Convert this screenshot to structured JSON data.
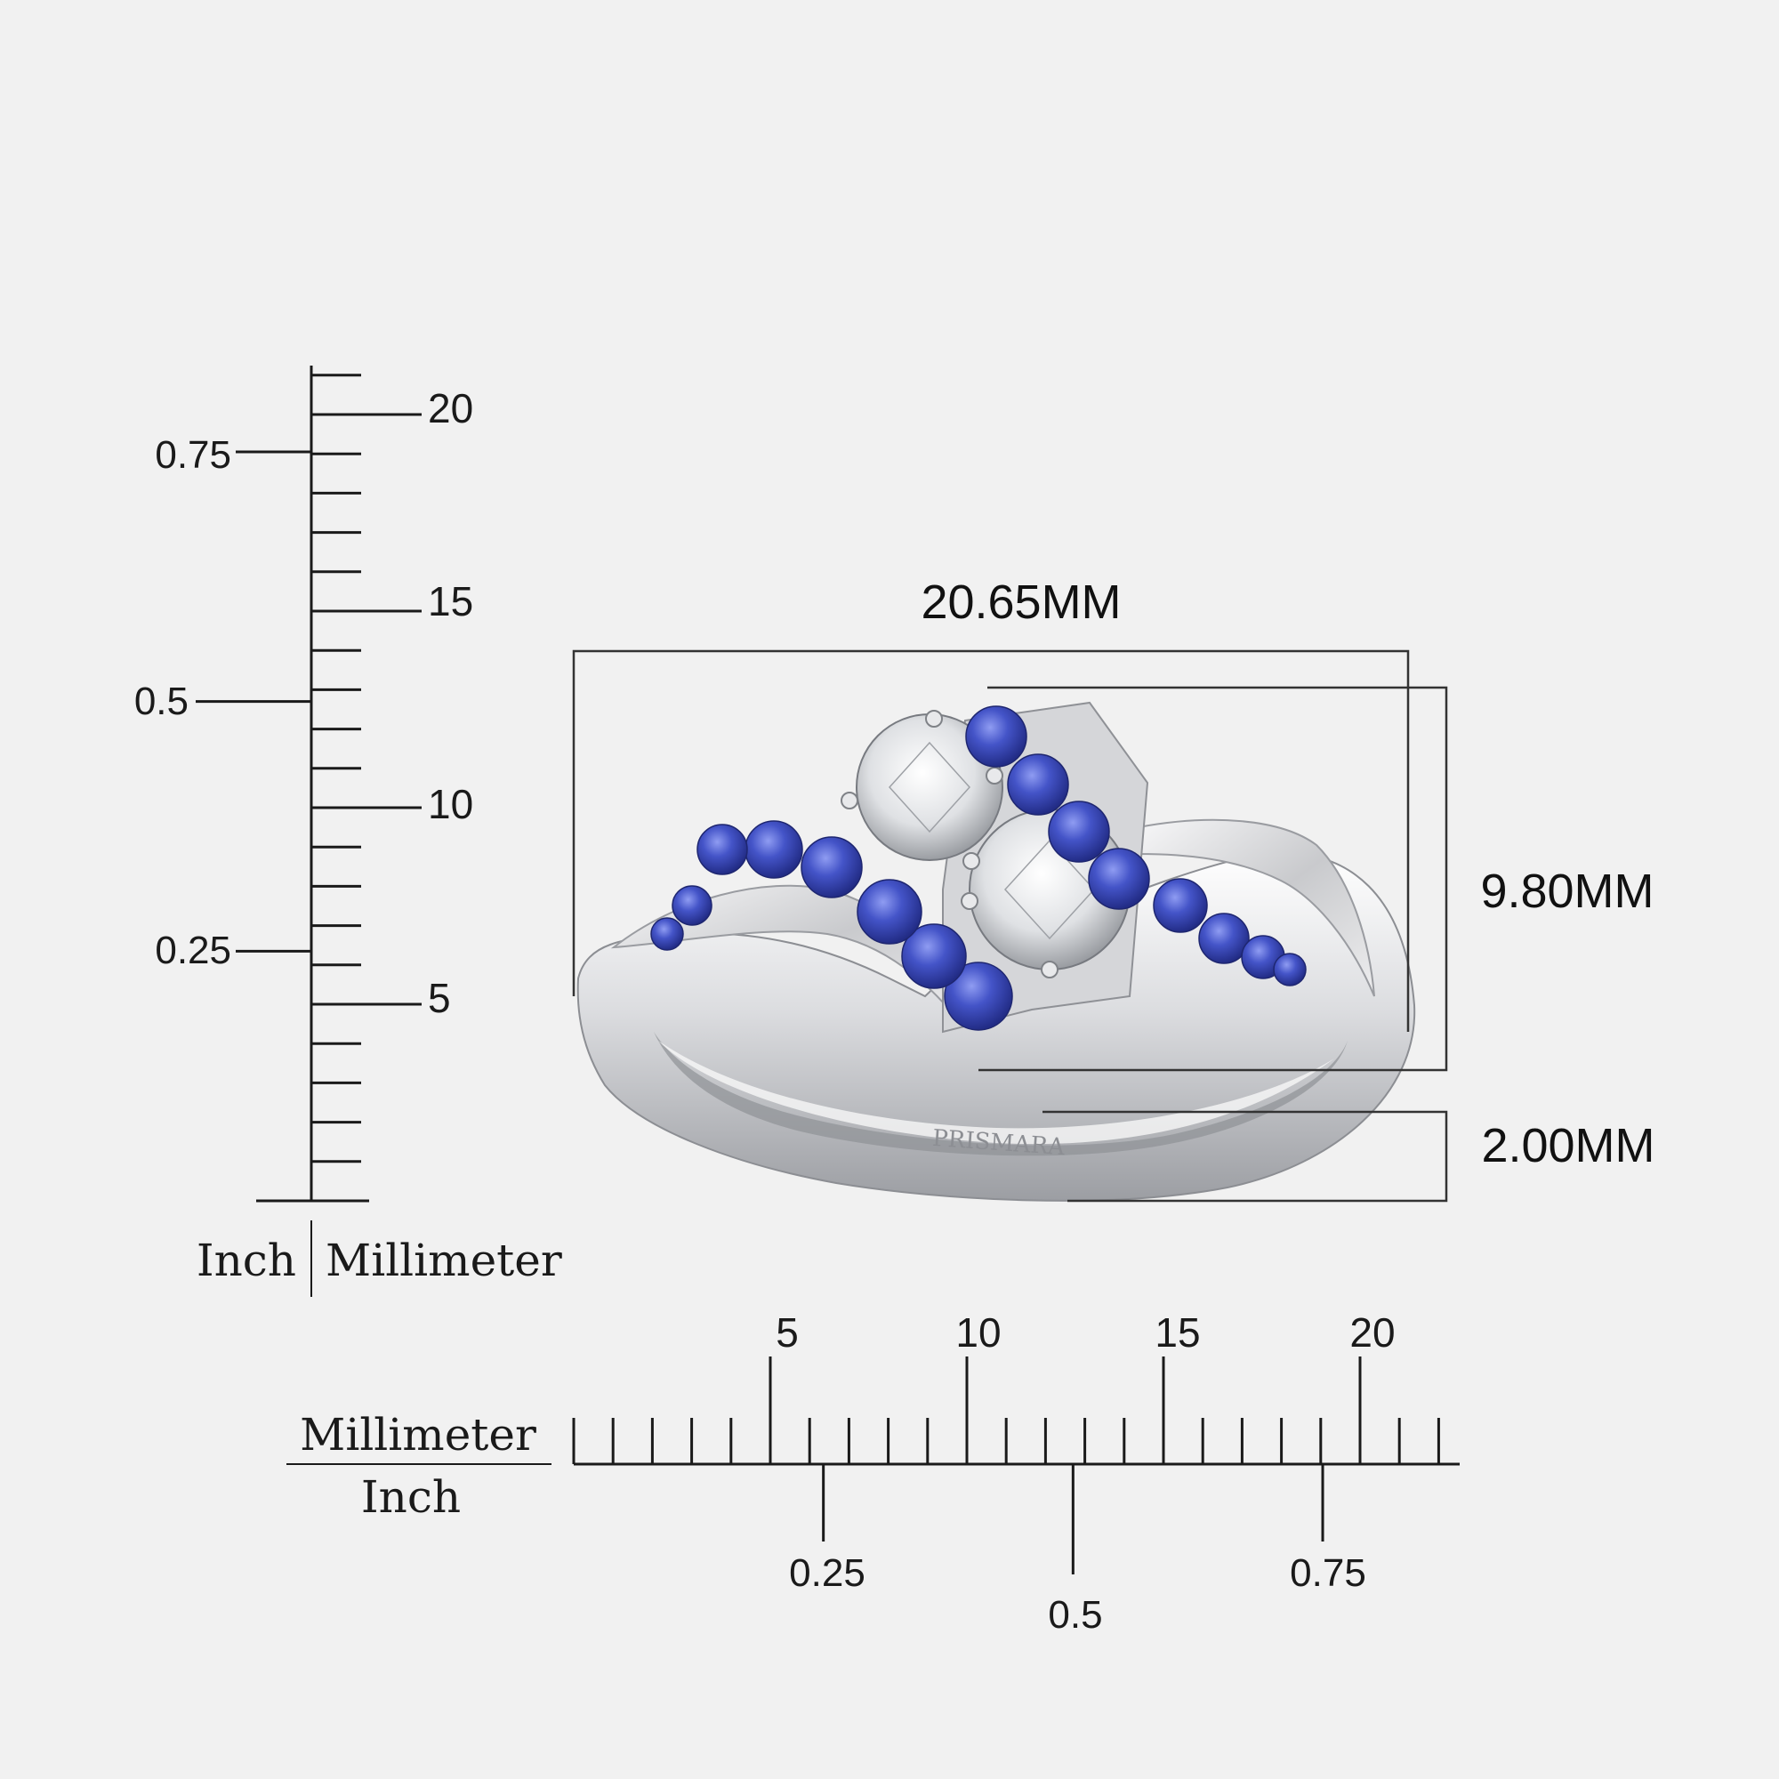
{
  "dimensions": {
    "width": "20.65MM",
    "height": "9.80MM",
    "band": "2.00MM"
  },
  "brand_engraving": "PRISMARA",
  "vertical_ruler": {
    "unit_left": "Inch",
    "unit_right": "Millimeter",
    "mm_labels": [
      "20",
      "15",
      "10",
      "5"
    ],
    "inch_labels": [
      "0.75",
      "0.5",
      "0.25"
    ]
  },
  "horizontal_ruler": {
    "unit_top": "Millimeter",
    "unit_bottom": "Inch",
    "mm_labels": [
      "5",
      "10",
      "15",
      "20"
    ],
    "inch_labels": [
      "0.25",
      "0.5",
      "0.75"
    ]
  },
  "colors": {
    "background": "#f1f1f1",
    "line": "#1a1a1a",
    "metal": "#d9dadc",
    "sapphire": "#3f4fc0",
    "diamond": "#eceef0"
  },
  "ring_image": "white-gold-bypass-ring-two-diamonds-blue-sapphires"
}
